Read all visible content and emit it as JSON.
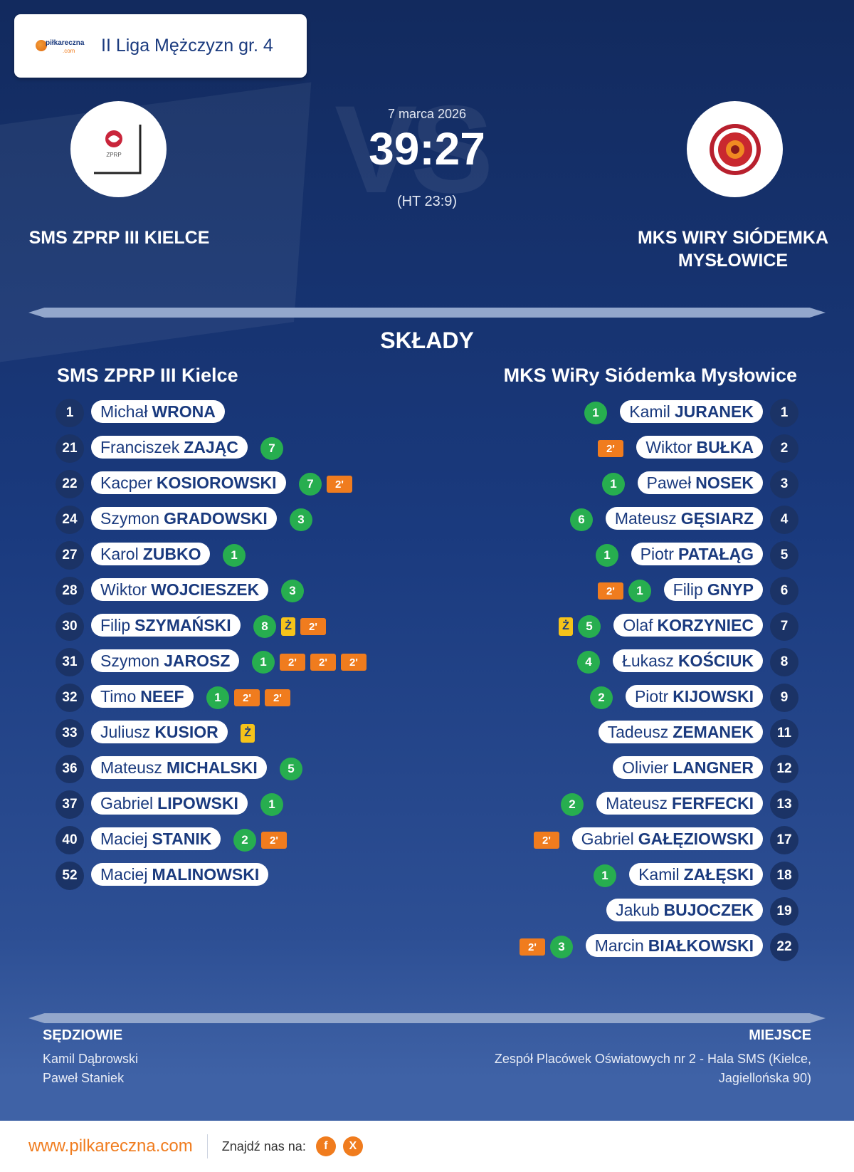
{
  "league": {
    "name": "II Liga Mężczyzn gr. 4",
    "logo_text": "piłkareczna",
    "logo_sub": ".com"
  },
  "match": {
    "date": "7 marca 2026",
    "score": "39:27",
    "halftime": "(HT 23:9)",
    "vs_text": "VS"
  },
  "home": {
    "name": "SMS ZPRP III KIELCE",
    "lineup_title": "SMS ZPRP III Kielce",
    "logo_text": "ZPRP"
  },
  "away": {
    "name": "MKS WIRY SIÓDEMKA MYSŁOWICE",
    "lineup_title": "MKS WiRy Siódemka Mysłowice"
  },
  "section_title": "SKŁADY",
  "home_players": [
    {
      "num": "1",
      "first": "Michał",
      "last": "WRONA",
      "goals": null,
      "cards": []
    },
    {
      "num": "21",
      "first": "Franciszek",
      "last": "ZAJĄC",
      "goals": "7",
      "cards": []
    },
    {
      "num": "22",
      "first": "Kacper",
      "last": "KOSIOROWSKI",
      "goals": "7",
      "cards": [
        "2'"
      ]
    },
    {
      "num": "24",
      "first": "Szymon",
      "last": "GRADOWSKI",
      "goals": "3",
      "cards": []
    },
    {
      "num": "27",
      "first": "Karol",
      "last": "ZUBKO",
      "goals": "1",
      "cards": []
    },
    {
      "num": "28",
      "first": "Wiktor",
      "last": "WOJCIESZEK",
      "goals": "3",
      "cards": []
    },
    {
      "num": "30",
      "first": "Filip",
      "last": "SZYMAŃSKI",
      "goals": "8",
      "cards": [
        "Ż",
        "2'"
      ]
    },
    {
      "num": "31",
      "first": "Szymon",
      "last": "JAROSZ",
      "goals": "1",
      "cards": [
        "2'",
        "2'",
        "2'"
      ]
    },
    {
      "num": "32",
      "first": "Timo",
      "last": "NEEF",
      "goals": "1",
      "cards": [
        "2'",
        "2'"
      ]
    },
    {
      "num": "33",
      "first": "Juliusz",
      "last": "KUSIOR",
      "goals": null,
      "cards": [
        "Ż"
      ]
    },
    {
      "num": "36",
      "first": "Mateusz",
      "last": "MICHALSKI",
      "goals": "5",
      "cards": []
    },
    {
      "num": "37",
      "first": "Gabriel",
      "last": "LIPOWSKI",
      "goals": "1",
      "cards": []
    },
    {
      "num": "40",
      "first": "Maciej",
      "last": "STANIK",
      "goals": "2",
      "cards": [
        "2'"
      ]
    },
    {
      "num": "52",
      "first": "Maciej",
      "last": "MALINOWSKI",
      "goals": null,
      "cards": []
    }
  ],
  "away_players": [
    {
      "num": "1",
      "first": "Kamil",
      "last": "JURANEK",
      "goals": "1",
      "cards": []
    },
    {
      "num": "2",
      "first": "Wiktor",
      "last": "BUŁKA",
      "goals": null,
      "cards": [
        "2'"
      ]
    },
    {
      "num": "3",
      "first": "Paweł",
      "last": "NOSEK",
      "goals": "1",
      "cards": []
    },
    {
      "num": "4",
      "first": "Mateusz",
      "last": "GĘSIARZ",
      "goals": "6",
      "cards": []
    },
    {
      "num": "5",
      "first": "Piotr",
      "last": "PATAŁĄG",
      "goals": "1",
      "cards": []
    },
    {
      "num": "6",
      "first": "Filip",
      "last": "GNYP",
      "goals": "1",
      "cards": [
        "2'"
      ]
    },
    {
      "num": "7",
      "first": "Olaf",
      "last": "KORZYNIEC",
      "goals": "5",
      "cards": [
        "Ż"
      ]
    },
    {
      "num": "8",
      "first": "Łukasz",
      "last": "KOŚCIUK",
      "goals": "4",
      "cards": []
    },
    {
      "num": "9",
      "first": "Piotr",
      "last": "KIJOWSKI",
      "goals": "2",
      "cards": []
    },
    {
      "num": "11",
      "first": "Tadeusz",
      "last": "ZEMANEK",
      "goals": null,
      "cards": []
    },
    {
      "num": "12",
      "first": "Olivier",
      "last": "LANGNER",
      "goals": null,
      "cards": []
    },
    {
      "num": "13",
      "first": "Mateusz",
      "last": "FERFECKI",
      "goals": "2",
      "cards": []
    },
    {
      "num": "17",
      "first": "Gabriel",
      "last": "GAŁĘZIOWSKI",
      "goals": null,
      "cards": [
        "2'"
      ]
    },
    {
      "num": "18",
      "first": "Kamil",
      "last": "ZAŁĘSKI",
      "goals": "1",
      "cards": []
    },
    {
      "num": "19",
      "first": "Jakub",
      "last": "BUJOCZEK",
      "goals": null,
      "cards": []
    },
    {
      "num": "22",
      "first": "Marcin",
      "last": "BIAŁKOWSKI",
      "goals": "3",
      "cards": [
        "2'"
      ]
    }
  ],
  "referees": {
    "heading": "SĘDZIOWIE",
    "names": [
      "Kamil Dąbrowski",
      "Paweł Staniek"
    ]
  },
  "venue": {
    "heading": "MIEJSCE",
    "lines": [
      "Zespół Placówek Oświatowych nr 2 - Hala SMS (Kielce,",
      "Jagiellońska 90)"
    ]
  },
  "footer": {
    "url": "www.pilkareczna.com",
    "find_us": "Znajdź nas na:",
    "social": [
      {
        "icon": "facebook-icon",
        "glyph": "f"
      },
      {
        "icon": "x-icon",
        "glyph": "X"
      }
    ]
  },
  "colors": {
    "accent": "#f07c1e",
    "goal": "#27ae4f",
    "yellow": "#f6c31a",
    "navy": "#1a3a7e"
  }
}
